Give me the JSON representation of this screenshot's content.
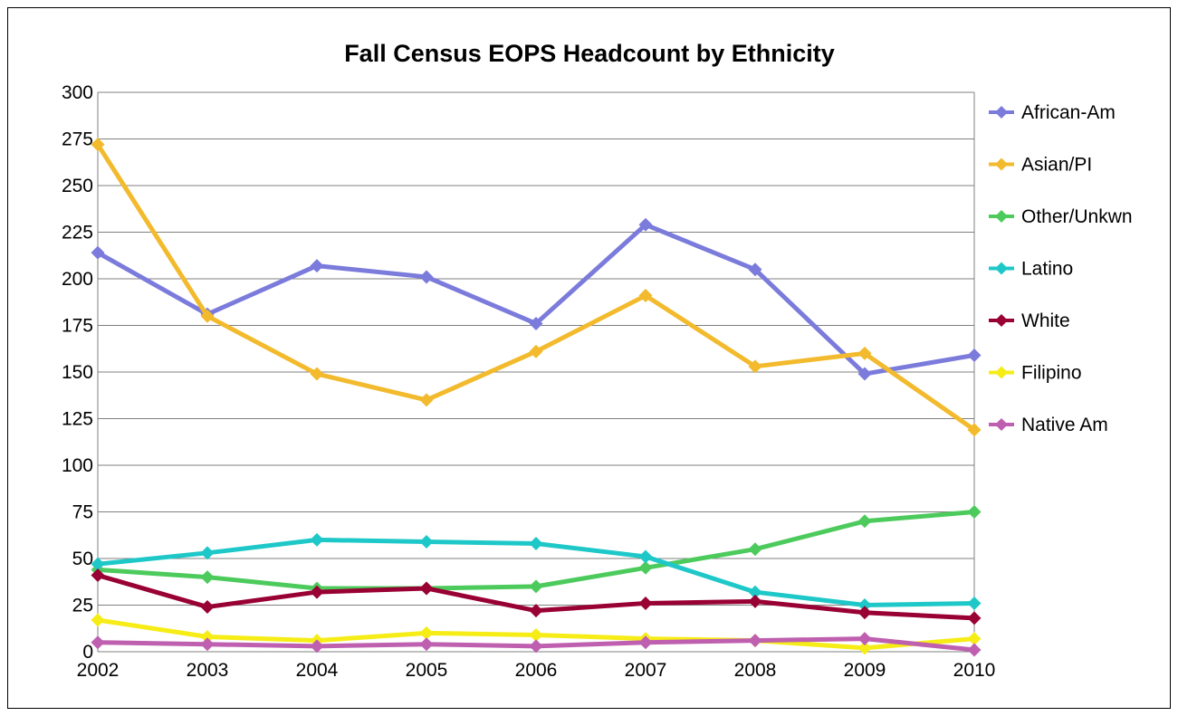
{
  "chart_data": {
    "type": "line",
    "title": "Fall Census EOPS Headcount by Ethnicity",
    "xlabel": "",
    "ylabel": "",
    "categories": [
      "2002",
      "2003",
      "2004",
      "2005",
      "2006",
      "2007",
      "2008",
      "2009",
      "2010"
    ],
    "ylim": [
      0,
      300
    ],
    "yticks": [
      "0",
      "25",
      "50",
      "75",
      "100",
      "125",
      "150",
      "175",
      "200",
      "225",
      "250",
      "275",
      "300"
    ],
    "grid": true,
    "legend_position": "right",
    "series": [
      {
        "name": "African-Am",
        "color": "#7B7BDC",
        "values": [
          214,
          181,
          207,
          201,
          176,
          229,
          205,
          149,
          159
        ]
      },
      {
        "name": "Asian/PI",
        "color": "#F2BA2C",
        "values": [
          272,
          180,
          149,
          135,
          161,
          191,
          153,
          160,
          119
        ]
      },
      {
        "name": "Other/Unkwn",
        "color": "#4CCB5C",
        "values": [
          44,
          40,
          34,
          34,
          35,
          45,
          55,
          70,
          75
        ]
      },
      {
        "name": "Latino",
        "color": "#1FC8C8",
        "values": [
          47,
          53,
          60,
          59,
          58,
          51,
          32,
          25,
          26
        ]
      },
      {
        "name": "White",
        "color": "#990033",
        "values": [
          41,
          24,
          32,
          34,
          22,
          26,
          27,
          21,
          18
        ]
      },
      {
        "name": "Filipino",
        "color": "#F6EC16",
        "values": [
          17,
          8,
          6,
          10,
          9,
          7,
          6,
          2,
          7
        ]
      },
      {
        "name": "Native Am",
        "color": "#BF5FB0",
        "values": [
          5,
          4,
          3,
          4,
          3,
          5,
          6,
          7,
          1
        ]
      }
    ]
  }
}
